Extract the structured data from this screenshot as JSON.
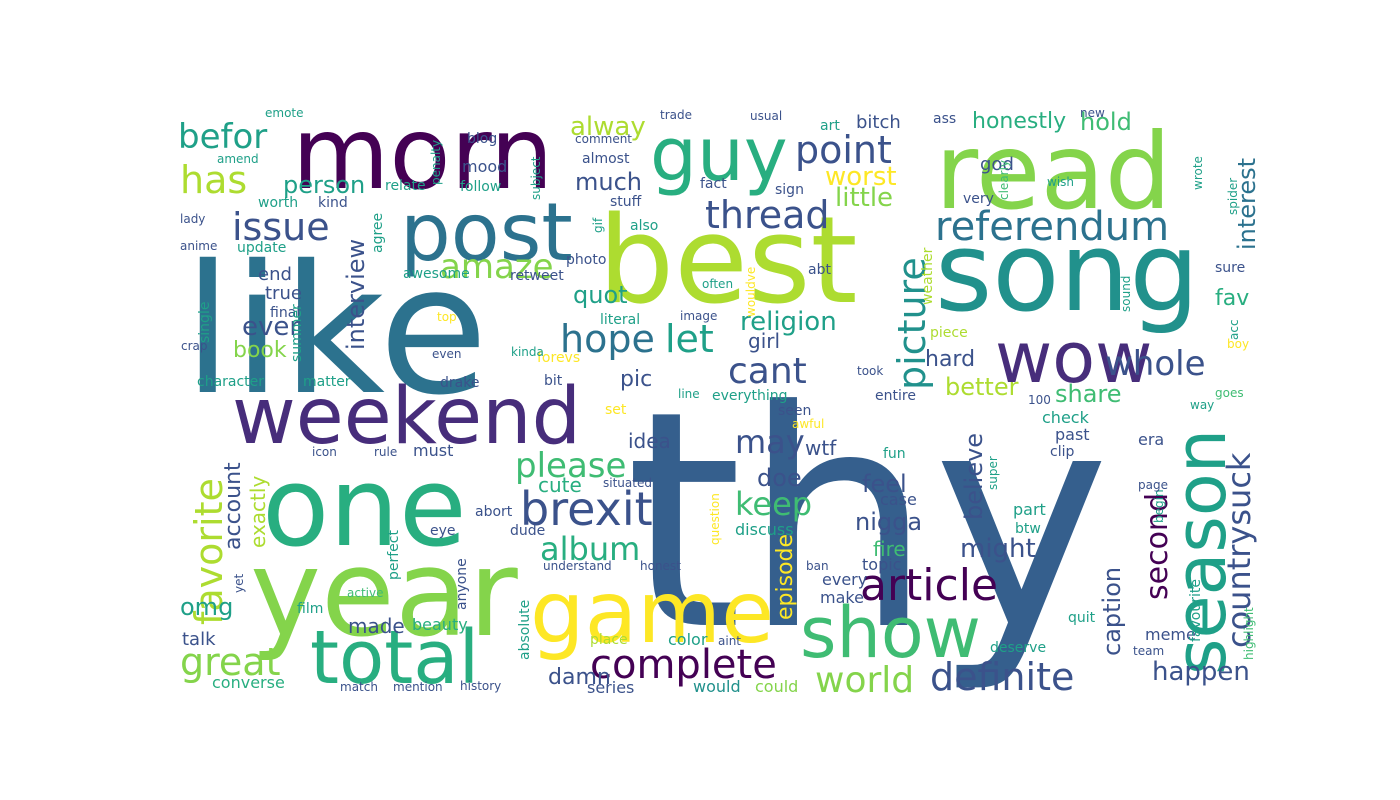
{
  "palette": {
    "background": "#ffffff",
    "deep_purple": "#440154",
    "purple": "#472d7b",
    "indigo": "#3b528b",
    "slate_blue": "#355f8d",
    "blue": "#2c728e",
    "teal_blue": "#21918c",
    "teal": "#1fa088",
    "sea_green": "#28ae80",
    "green": "#3fbc73",
    "grass": "#5ec962",
    "lime": "#84d44b",
    "yellow_green": "#addc30",
    "yellow": "#fde725"
  },
  "words": [
    {
      "text": "thy",
      "color": "slate_blue"
    },
    {
      "text": "like",
      "color": "blue"
    },
    {
      "text": "best",
      "color": "yellow_green"
    },
    {
      "text": "year",
      "color": "lime"
    },
    {
      "text": "one",
      "color": "sea_green"
    },
    {
      "text": "song",
      "color": "teal_blue"
    },
    {
      "text": "read",
      "color": "lime"
    },
    {
      "text": "morn",
      "color": "deep_purple"
    },
    {
      "text": "game",
      "color": "yellow"
    },
    {
      "text": "post",
      "color": "blue"
    },
    {
      "text": "weekend",
      "color": "purple"
    },
    {
      "text": "guy",
      "color": "sea_green"
    },
    {
      "text": "total",
      "color": "sea_green"
    },
    {
      "text": "show",
      "color": "green"
    },
    {
      "text": "season",
      "color": "teal"
    },
    {
      "text": "wow",
      "color": "purple"
    },
    {
      "text": "brexit",
      "color": "indigo"
    },
    {
      "text": "article",
      "color": "deep_purple"
    },
    {
      "text": "complete",
      "color": "deep_purple"
    },
    {
      "text": "referendum",
      "color": "blue"
    },
    {
      "text": "thread",
      "color": "indigo"
    },
    {
      "text": "point",
      "color": "indigo"
    },
    {
      "text": "issue",
      "color": "indigo"
    },
    {
      "text": "picture",
      "color": "teal_blue"
    },
    {
      "text": "favorite",
      "color": "yellow_green"
    },
    {
      "text": "amaze",
      "color": "lime"
    },
    {
      "text": "hope",
      "color": "blue"
    },
    {
      "text": "let",
      "color": "teal"
    },
    {
      "text": "cant",
      "color": "indigo"
    },
    {
      "text": "whole",
      "color": "indigo"
    },
    {
      "text": "definite",
      "color": "indigo"
    },
    {
      "text": "world",
      "color": "lime"
    },
    {
      "text": "great",
      "color": "lime"
    },
    {
      "text": "has",
      "color": "yellow_green"
    },
    {
      "text": "befor",
      "color": "teal"
    },
    {
      "text": "please",
      "color": "green"
    },
    {
      "text": "album",
      "color": "sea_green"
    },
    {
      "text": "keep",
      "color": "green"
    },
    {
      "text": "may",
      "color": "indigo"
    },
    {
      "text": "countrysuck",
      "color": "indigo"
    },
    {
      "text": "second",
      "color": "deep_purple"
    },
    {
      "text": "interest",
      "color": "blue"
    },
    {
      "text": "religion",
      "color": "teal"
    },
    {
      "text": "interview",
      "color": "indigo"
    },
    {
      "text": "person",
      "color": "teal"
    },
    {
      "text": "much",
      "color": "indigo"
    },
    {
      "text": "worst",
      "color": "yellow"
    },
    {
      "text": "little",
      "color": "lime"
    },
    {
      "text": "alway",
      "color": "yellow_green"
    },
    {
      "text": "hold",
      "color": "green"
    },
    {
      "text": "honestly",
      "color": "sea_green"
    },
    {
      "text": "share",
      "color": "green"
    },
    {
      "text": "better",
      "color": "yellow_green"
    },
    {
      "text": "believe",
      "color": "indigo"
    },
    {
      "text": "caption",
      "color": "indigo"
    },
    {
      "text": "happen",
      "color": "indigo"
    },
    {
      "text": "might",
      "color": "indigo"
    },
    {
      "text": "nigga",
      "color": "indigo"
    },
    {
      "text": "feel",
      "color": "indigo"
    },
    {
      "text": "doe",
      "color": "indigo"
    },
    {
      "text": "quot",
      "color": "teal"
    },
    {
      "text": "ever",
      "color": "indigo"
    },
    {
      "text": "account",
      "color": "indigo"
    },
    {
      "text": "omg",
      "color": "teal"
    },
    {
      "text": "fav",
      "color": "sea_green"
    },
    {
      "text": "hard",
      "color": "indigo"
    },
    {
      "text": "pic",
      "color": "indigo"
    },
    {
      "text": "girl",
      "color": "indigo"
    },
    {
      "text": "damn",
      "color": "indigo"
    },
    {
      "text": "made",
      "color": "indigo"
    },
    {
      "text": "episode",
      "color": "yellow"
    },
    {
      "text": "wtf",
      "color": "indigo"
    },
    {
      "text": "cute",
      "color": "sea_green"
    },
    {
      "text": "idea",
      "color": "indigo"
    },
    {
      "text": "fire",
      "color": "green"
    },
    {
      "text": "book",
      "color": "lime"
    },
    {
      "text": "end",
      "color": "indigo"
    },
    {
      "text": "true",
      "color": "indigo"
    },
    {
      "text": "exactly",
      "color": "yellow_green"
    },
    {
      "text": "talk",
      "color": "indigo"
    },
    {
      "text": "god",
      "color": "indigo"
    },
    {
      "text": "bitch",
      "color": "indigo"
    },
    {
      "text": "series",
      "color": "indigo"
    },
    {
      "text": "meme",
      "color": "indigo"
    },
    {
      "text": "would",
      "color": "teal_blue"
    },
    {
      "text": "could",
      "color": "lime"
    },
    {
      "text": "converse",
      "color": "sea_green"
    },
    {
      "text": "beauty",
      "color": "sea_green"
    },
    {
      "text": "color",
      "color": "teal"
    },
    {
      "text": "topic",
      "color": "indigo"
    },
    {
      "text": "make",
      "color": "indigo"
    },
    {
      "text": "every",
      "color": "indigo"
    },
    {
      "text": "case",
      "color": "indigo"
    },
    {
      "text": "discuss",
      "color": "teal"
    },
    {
      "text": "dude",
      "color": "indigo"
    },
    {
      "text": "abort",
      "color": "indigo"
    },
    {
      "text": "anyone",
      "color": "indigo"
    },
    {
      "text": "absolute",
      "color": "teal"
    },
    {
      "text": "perfect",
      "color": "teal"
    },
    {
      "text": "final",
      "color": "indigo"
    },
    {
      "text": "single",
      "color": "teal"
    },
    {
      "text": "summer",
      "color": "teal"
    },
    {
      "text": "character",
      "color": "teal"
    },
    {
      "text": "matter",
      "color": "teal"
    },
    {
      "text": "drake",
      "color": "indigo"
    },
    {
      "text": "forevs",
      "color": "yellow"
    },
    {
      "text": "bit",
      "color": "indigo"
    },
    {
      "text": "everything",
      "color": "teal"
    },
    {
      "text": "seen",
      "color": "indigo"
    },
    {
      "text": "entire",
      "color": "indigo"
    },
    {
      "text": "check",
      "color": "teal"
    },
    {
      "text": "past",
      "color": "indigo"
    },
    {
      "text": "clip",
      "color": "indigo"
    },
    {
      "text": "fun",
      "color": "teal"
    },
    {
      "text": "era",
      "color": "indigo"
    },
    {
      "text": "part",
      "color": "teal"
    },
    {
      "text": "btw",
      "color": "teal"
    },
    {
      "text": "quit",
      "color": "teal"
    },
    {
      "text": "deserve",
      "color": "teal"
    },
    {
      "text": "team",
      "color": "indigo"
    },
    {
      "text": "favourite",
      "color": "teal"
    },
    {
      "text": "highlight",
      "color": "green"
    },
    {
      "text": "acc",
      "color": "teal"
    },
    {
      "text": "boy",
      "color": "yellow"
    },
    {
      "text": "goes",
      "color": "green"
    },
    {
      "text": "way",
      "color": "teal"
    },
    {
      "text": "sure",
      "color": "indigo"
    },
    {
      "text": "sound",
      "color": "teal"
    },
    {
      "text": "spider",
      "color": "teal"
    },
    {
      "text": "wrote",
      "color": "teal"
    },
    {
      "text": "wish",
      "color": "teal"
    },
    {
      "text": "new",
      "color": "indigo"
    },
    {
      "text": "clearly",
      "color": "green"
    },
    {
      "text": "very",
      "color": "indigo"
    },
    {
      "text": "ass",
      "color": "indigo"
    },
    {
      "text": "art",
      "color": "teal"
    },
    {
      "text": "usual",
      "color": "indigo"
    },
    {
      "text": "trade",
      "color": "indigo"
    },
    {
      "text": "comment",
      "color": "indigo"
    },
    {
      "text": "almost",
      "color": "indigo"
    },
    {
      "text": "fact",
      "color": "indigo"
    },
    {
      "text": "sign",
      "color": "indigo"
    },
    {
      "text": "stuff",
      "color": "indigo"
    },
    {
      "text": "also",
      "color": "teal"
    },
    {
      "text": "photo",
      "color": "indigo"
    },
    {
      "text": "retweet",
      "color": "indigo"
    },
    {
      "text": "awesome",
      "color": "teal"
    },
    {
      "text": "literal",
      "color": "teal"
    },
    {
      "text": "image",
      "color": "indigo"
    },
    {
      "text": "often",
      "color": "teal"
    },
    {
      "text": "wouldve",
      "color": "yellow"
    },
    {
      "text": "abt",
      "color": "indigo"
    },
    {
      "text": "weather",
      "color": "yellow_green"
    },
    {
      "text": "piece",
      "color": "yellow_green"
    },
    {
      "text": "took",
      "color": "indigo"
    },
    {
      "text": "line",
      "color": "teal"
    },
    {
      "text": "awful",
      "color": "yellow"
    },
    {
      "text": "set",
      "color": "yellow"
    },
    {
      "text": "100",
      "color": "indigo"
    },
    {
      "text": "begin",
      "color": "teal"
    },
    {
      "text": "page",
      "color": "indigo"
    },
    {
      "text": "super",
      "color": "teal"
    },
    {
      "text": "question",
      "color": "yellow"
    },
    {
      "text": "situated",
      "color": "indigo"
    },
    {
      "text": "understand",
      "color": "indigo"
    },
    {
      "text": "honest",
      "color": "indigo"
    },
    {
      "text": "eye",
      "color": "indigo"
    },
    {
      "text": "icon",
      "color": "indigo"
    },
    {
      "text": "rule",
      "color": "indigo"
    },
    {
      "text": "must",
      "color": "indigo"
    },
    {
      "text": "yet",
      "color": "indigo"
    },
    {
      "text": "film",
      "color": "teal"
    },
    {
      "text": "active",
      "color": "green"
    },
    {
      "text": "ban",
      "color": "indigo"
    },
    {
      "text": "aint",
      "color": "indigo"
    },
    {
      "text": "place",
      "color": "yellow_green"
    },
    {
      "text": "history",
      "color": "indigo"
    },
    {
      "text": "mention",
      "color": "indigo"
    },
    {
      "text": "match",
      "color": "indigo"
    },
    {
      "text": "crap",
      "color": "indigo"
    },
    {
      "text": "even",
      "color": "indigo"
    },
    {
      "text": "top",
      "color": "yellow"
    },
    {
      "text": "kinda",
      "color": "teal"
    },
    {
      "text": "anime",
      "color": "indigo"
    },
    {
      "text": "update",
      "color": "teal"
    },
    {
      "text": "agree",
      "color": "teal"
    },
    {
      "text": "worth",
      "color": "teal"
    },
    {
      "text": "kind",
      "color": "indigo"
    },
    {
      "text": "relate",
      "color": "teal"
    },
    {
      "text": "follow",
      "color": "teal"
    },
    {
      "text": "mood",
      "color": "indigo"
    },
    {
      "text": "blog",
      "color": "indigo"
    },
    {
      "text": "gif",
      "color": "teal"
    },
    {
      "text": "penalty",
      "color": "teal"
    },
    {
      "text": "subject",
      "color": "teal"
    },
    {
      "text": "lady",
      "color": "indigo"
    },
    {
      "text": "amend",
      "color": "teal"
    },
    {
      "text": "emote",
      "color": "teal"
    }
  ]
}
